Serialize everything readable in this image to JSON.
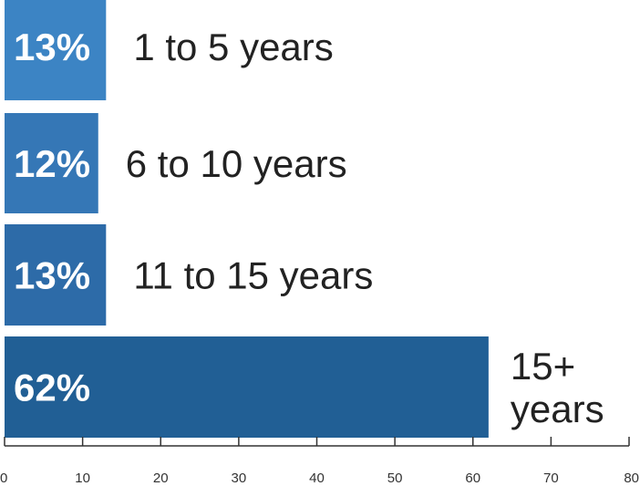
{
  "chart_data": {
    "type": "bar",
    "orientation": "horizontal",
    "title": "",
    "xlabel": "",
    "ylabel": "",
    "categories": [
      "1 to 5 years",
      "6 to 10 years",
      "11 to 15 years",
      "15+ years"
    ],
    "category_lines": [
      [
        "1 to 5 years"
      ],
      [
        "6 to 10 years"
      ],
      [
        "11 to 15 years"
      ],
      [
        "15+",
        "years"
      ]
    ],
    "values": [
      13,
      12,
      13,
      62
    ],
    "value_labels": [
      "13%",
      "12%",
      "13%",
      "62%"
    ],
    "xlim": [
      0,
      80
    ],
    "xticks": [
      0,
      10,
      20,
      30,
      40,
      50,
      60,
      70,
      80
    ],
    "grid": false,
    "legend": "none",
    "colors": {
      "bars": [
        "#3c84c4",
        "#3577b6",
        "#2d6ba8",
        "#215f95"
      ],
      "axis": "#333333"
    }
  }
}
